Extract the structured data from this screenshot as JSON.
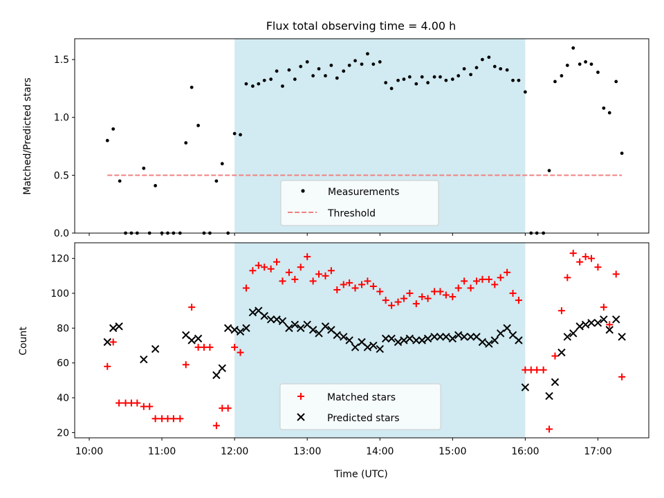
{
  "chart_data": [
    {
      "type": "scatter",
      "title": "Flux total observing time = 4.00 h",
      "ylabel": "Matched/Predicted stars",
      "xlabel": "",
      "x_unit": "hours (UTC)",
      "xlim": [
        9.8,
        17.7
      ],
      "ylim": [
        0,
        1.68
      ],
      "y_ticks": [
        {
          "value": 0.0,
          "label": "0.0"
        },
        {
          "value": 0.5,
          "label": "0.5"
        },
        {
          "value": 1.0,
          "label": "1.0"
        },
        {
          "value": 1.5,
          "label": "1.5"
        }
      ],
      "shaded_span": {
        "from": 12.0,
        "to": 16.0,
        "color": "#add8e6"
      },
      "legend_position": "bottom-center",
      "series": [
        {
          "name": "Measurements",
          "marker": "dot",
          "color": "#000000",
          "points": [
            [
              10.25,
              0.8
            ],
            [
              10.33,
              0.9
            ],
            [
              10.42,
              0.45
            ],
            [
              10.5,
              0.0
            ],
            [
              10.58,
              0.0
            ],
            [
              10.66,
              0.0
            ],
            [
              10.75,
              0.56
            ],
            [
              10.83,
              0.0
            ],
            [
              10.91,
              0.41
            ],
            [
              11.0,
              0.0
            ],
            [
              11.08,
              0.0
            ],
            [
              11.16,
              0.0
            ],
            [
              11.25,
              0.0
            ],
            [
              11.33,
              0.78
            ],
            [
              11.41,
              1.26
            ],
            [
              11.5,
              0.93
            ],
            [
              11.58,
              0.0
            ],
            [
              11.66,
              0.0
            ],
            [
              11.75,
              0.45
            ],
            [
              11.83,
              0.6
            ],
            [
              11.91,
              0.0
            ],
            [
              12.0,
              0.86
            ],
            [
              12.08,
              0.85
            ],
            [
              12.16,
              1.29
            ],
            [
              12.25,
              1.27
            ],
            [
              12.33,
              1.29
            ],
            [
              12.41,
              1.32
            ],
            [
              12.5,
              1.33
            ],
            [
              12.58,
              1.4
            ],
            [
              12.66,
              1.27
            ],
            [
              12.75,
              1.41
            ],
            [
              12.83,
              1.33
            ],
            [
              12.91,
              1.44
            ],
            [
              13.0,
              1.48
            ],
            [
              13.08,
              1.36
            ],
            [
              13.16,
              1.42
            ],
            [
              13.25,
              1.36
            ],
            [
              13.33,
              1.45
            ],
            [
              13.41,
              1.34
            ],
            [
              13.5,
              1.4
            ],
            [
              13.58,
              1.45
            ],
            [
              13.66,
              1.49
            ],
            [
              13.75,
              1.46
            ],
            [
              13.83,
              1.55
            ],
            [
              13.91,
              1.46
            ],
            [
              14.0,
              1.48
            ],
            [
              14.08,
              1.3
            ],
            [
              14.16,
              1.25
            ],
            [
              14.25,
              1.32
            ],
            [
              14.33,
              1.33
            ],
            [
              14.41,
              1.35
            ],
            [
              14.5,
              1.29
            ],
            [
              14.58,
              1.35
            ],
            [
              14.66,
              1.3
            ],
            [
              14.75,
              1.35
            ],
            [
              14.83,
              1.35
            ],
            [
              14.91,
              1.32
            ],
            [
              15.0,
              1.33
            ],
            [
              15.08,
              1.36
            ],
            [
              15.16,
              1.42
            ],
            [
              15.25,
              1.37
            ],
            [
              15.33,
              1.43
            ],
            [
              15.41,
              1.5
            ],
            [
              15.5,
              1.52
            ],
            [
              15.58,
              1.44
            ],
            [
              15.66,
              1.42
            ],
            [
              15.75,
              1.41
            ],
            [
              15.83,
              1.32
            ],
            [
              15.91,
              1.32
            ],
            [
              16.0,
              1.22
            ],
            [
              16.08,
              0.0
            ],
            [
              16.16,
              0.0
            ],
            [
              16.25,
              0.0
            ],
            [
              16.33,
              0.54
            ],
            [
              16.41,
              1.31
            ],
            [
              16.5,
              1.36
            ],
            [
              16.58,
              1.45
            ],
            [
              16.66,
              1.6
            ],
            [
              16.75,
              1.46
            ],
            [
              16.83,
              1.48
            ],
            [
              16.91,
              1.46
            ],
            [
              17.0,
              1.39
            ],
            [
              17.08,
              1.08
            ],
            [
              17.16,
              1.04
            ],
            [
              17.25,
              1.31
            ],
            [
              17.33,
              0.69
            ]
          ]
        },
        {
          "name": "Threshold",
          "style": "dashed",
          "color": "#f08080",
          "points": [
            [
              10.25,
              0.5
            ],
            [
              17.33,
              0.5
            ]
          ]
        }
      ]
    },
    {
      "type": "scatter",
      "title": "",
      "ylabel": "Count",
      "xlabel": "Time (UTC)",
      "x_unit": "hours (UTC)",
      "xlim": [
        9.8,
        17.7
      ],
      "ylim": [
        17,
        129
      ],
      "y_ticks": [
        {
          "value": 20,
          "label": "20"
        },
        {
          "value": 40,
          "label": "40"
        },
        {
          "value": 60,
          "label": "60"
        },
        {
          "value": 80,
          "label": "80"
        },
        {
          "value": 100,
          "label": "100"
        },
        {
          "value": 120,
          "label": "120"
        }
      ],
      "x_ticks": [
        {
          "value": 10,
          "label": "10:00"
        },
        {
          "value": 11,
          "label": "11:00"
        },
        {
          "value": 12,
          "label": "12:00"
        },
        {
          "value": 13,
          "label": "13:00"
        },
        {
          "value": 14,
          "label": "14:00"
        },
        {
          "value": 15,
          "label": "15:00"
        },
        {
          "value": 16,
          "label": "16:00"
        },
        {
          "value": 17,
          "label": "17:00"
        }
      ],
      "shaded_span": {
        "from": 12.0,
        "to": 16.0,
        "color": "#add8e6"
      },
      "legend_position": "bottom-center",
      "series": [
        {
          "name": "Matched stars",
          "marker": "plus",
          "color": "#ff0000",
          "points": [
            [
              10.25,
              58
            ],
            [
              10.33,
              72
            ],
            [
              10.41,
              37
            ],
            [
              10.5,
              37
            ],
            [
              10.58,
              37
            ],
            [
              10.66,
              37
            ],
            [
              10.75,
              35
            ],
            [
              10.83,
              35
            ],
            [
              10.91,
              28
            ],
            [
              11.0,
              28
            ],
            [
              11.08,
              28
            ],
            [
              11.16,
              28
            ],
            [
              11.25,
              28
            ],
            [
              11.33,
              59
            ],
            [
              11.41,
              92
            ],
            [
              11.5,
              69
            ],
            [
              11.58,
              69
            ],
            [
              11.66,
              69
            ],
            [
              11.75,
              24
            ],
            [
              11.83,
              34
            ],
            [
              11.91,
              34
            ],
            [
              12.0,
              69
            ],
            [
              12.08,
              66
            ],
            [
              12.16,
              103
            ],
            [
              12.25,
              113
            ],
            [
              12.33,
              116
            ],
            [
              12.41,
              115
            ],
            [
              12.5,
              114
            ],
            [
              12.58,
              118
            ],
            [
              12.66,
              107
            ],
            [
              12.75,
              112
            ],
            [
              12.83,
              108
            ],
            [
              12.91,
              115
            ],
            [
              13.0,
              121
            ],
            [
              13.08,
              107
            ],
            [
              13.16,
              111
            ],
            [
              13.25,
              110
            ],
            [
              13.33,
              113
            ],
            [
              13.41,
              102
            ],
            [
              13.5,
              105
            ],
            [
              13.58,
              106
            ],
            [
              13.66,
              103
            ],
            [
              13.75,
              105
            ],
            [
              13.83,
              107
            ],
            [
              13.91,
              104
            ],
            [
              14.0,
              101
            ],
            [
              14.08,
              96
            ],
            [
              14.16,
              93
            ],
            [
              14.25,
              95
            ],
            [
              14.33,
              97
            ],
            [
              14.41,
              100
            ],
            [
              14.5,
              94
            ],
            [
              14.58,
              98
            ],
            [
              14.66,
              97
            ],
            [
              14.75,
              101
            ],
            [
              14.83,
              101
            ],
            [
              14.91,
              99
            ],
            [
              15.0,
              98
            ],
            [
              15.08,
              103
            ],
            [
              15.16,
              107
            ],
            [
              15.25,
              103
            ],
            [
              15.33,
              107
            ],
            [
              15.41,
              108
            ],
            [
              15.5,
              108
            ],
            [
              15.58,
              105
            ],
            [
              15.66,
              109
            ],
            [
              15.75,
              112
            ],
            [
              15.83,
              100
            ],
            [
              15.91,
              96
            ],
            [
              16.0,
              56
            ],
            [
              16.08,
              56
            ],
            [
              16.16,
              56
            ],
            [
              16.25,
              56
            ],
            [
              16.33,
              22
            ],
            [
              16.41,
              64
            ],
            [
              16.5,
              90
            ],
            [
              16.58,
              109
            ],
            [
              16.66,
              123
            ],
            [
              16.75,
              118
            ],
            [
              16.83,
              121
            ],
            [
              16.91,
              120
            ],
            [
              17.0,
              115
            ],
            [
              17.08,
              92
            ],
            [
              17.16,
              82
            ],
            [
              17.25,
              111
            ],
            [
              17.33,
              52
            ]
          ]
        },
        {
          "name": "Predicted stars",
          "marker": "x",
          "color": "#000000",
          "points": [
            [
              10.25,
              72
            ],
            [
              10.33,
              80
            ],
            [
              10.41,
              81
            ],
            [
              10.75,
              62
            ],
            [
              10.91,
              68
            ],
            [
              11.33,
              76
            ],
            [
              11.41,
              73
            ],
            [
              11.5,
              74
            ],
            [
              11.75,
              53
            ],
            [
              11.83,
              57
            ],
            [
              11.91,
              80
            ],
            [
              12.0,
              79
            ],
            [
              12.08,
              78
            ],
            [
              12.16,
              80
            ],
            [
              12.25,
              89
            ],
            [
              12.33,
              90
            ],
            [
              12.41,
              87
            ],
            [
              12.5,
              85
            ],
            [
              12.58,
              85
            ],
            [
              12.66,
              84
            ],
            [
              12.75,
              80
            ],
            [
              12.83,
              82
            ],
            [
              12.91,
              80
            ],
            [
              13.0,
              82
            ],
            [
              13.08,
              79
            ],
            [
              13.16,
              77
            ],
            [
              13.25,
              81
            ],
            [
              13.33,
              79
            ],
            [
              13.41,
              76
            ],
            [
              13.5,
              75
            ],
            [
              13.58,
              73
            ],
            [
              13.66,
              69
            ],
            [
              13.75,
              72
            ],
            [
              13.83,
              69
            ],
            [
              13.91,
              70
            ],
            [
              14.0,
              68
            ],
            [
              14.08,
              74
            ],
            [
              14.16,
              74
            ],
            [
              14.25,
              72
            ],
            [
              14.33,
              73
            ],
            [
              14.41,
              74
            ],
            [
              14.5,
              73
            ],
            [
              14.58,
              73
            ],
            [
              14.66,
              74
            ],
            [
              14.75,
              75
            ],
            [
              14.83,
              75
            ],
            [
              14.91,
              75
            ],
            [
              15.0,
              74
            ],
            [
              15.08,
              76
            ],
            [
              15.16,
              75
            ],
            [
              15.25,
              75
            ],
            [
              15.33,
              75
            ],
            [
              15.41,
              72
            ],
            [
              15.5,
              71
            ],
            [
              15.58,
              73
            ],
            [
              15.66,
              77
            ],
            [
              15.75,
              80
            ],
            [
              15.83,
              76
            ],
            [
              15.91,
              73
            ],
            [
              16.0,
              46
            ],
            [
              16.33,
              41
            ],
            [
              16.41,
              49
            ],
            [
              16.5,
              66
            ],
            [
              16.58,
              75
            ],
            [
              16.66,
              77
            ],
            [
              16.75,
              81
            ],
            [
              16.83,
              82
            ],
            [
              16.91,
              83
            ],
            [
              17.0,
              83
            ],
            [
              17.08,
              85
            ],
            [
              17.16,
              79
            ],
            [
              17.25,
              85
            ],
            [
              17.33,
              75
            ]
          ]
        }
      ]
    }
  ]
}
